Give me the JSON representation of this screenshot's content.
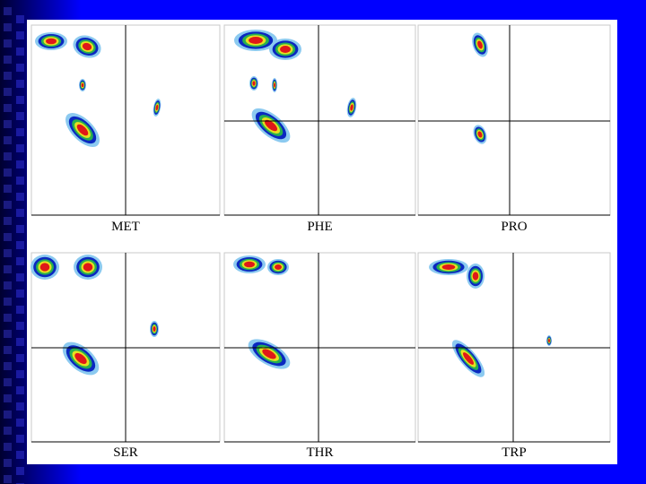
{
  "panels": [
    {
      "label": "MET"
    },
    {
      "label": "PHE"
    },
    {
      "label": "PRO"
    },
    {
      "label": "SER"
    },
    {
      "label": "THR"
    },
    {
      "label": "TRP"
    }
  ]
}
